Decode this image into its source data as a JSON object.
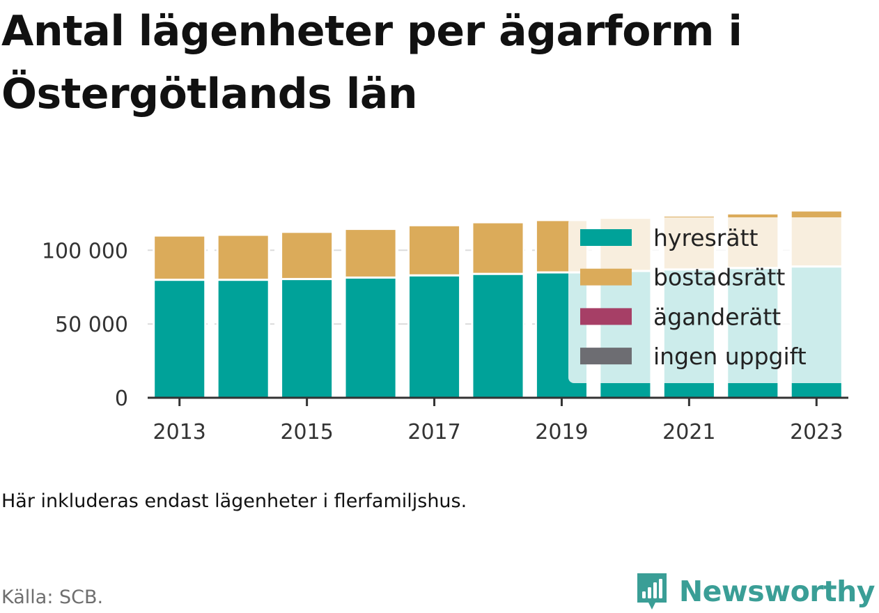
{
  "title": "Antal lägenheter per ägarform i Östergötlands län",
  "note": "Här inkluderas endast lägenheter i flerfamiljshus.",
  "source": "Källa: SCB.",
  "brand": {
    "name": "Newsworthy",
    "icon": "newsworthy-chart-logo",
    "color": "#3a9e96"
  },
  "chart_data": {
    "type": "bar",
    "stacked": true,
    "categories": [
      "2013",
      "2014",
      "2015",
      "2016",
      "2017",
      "2018",
      "2019",
      "2020",
      "2021",
      "2022",
      "2023"
    ],
    "x_tick_labels": [
      "2013",
      "2015",
      "2017",
      "2019",
      "2021",
      "2023"
    ],
    "y_ticks": [
      0,
      50000,
      100000
    ],
    "y_tick_labels": [
      "0",
      "50 000",
      "100 000"
    ],
    "ylim": [
      0,
      128000
    ],
    "grid": true,
    "legend_position": "top-right",
    "series": [
      {
        "name": "hyresrätt",
        "color": "#00a299",
        "values": [
          80000,
          80000,
          80500,
          81500,
          83000,
          84000,
          85000,
          86000,
          87000,
          88000,
          89000
        ]
      },
      {
        "name": "bostadsrätt",
        "color": "#dbab5a",
        "values": [
          30000,
          30500,
          32000,
          33000,
          34000,
          35000,
          35500,
          36000,
          36500,
          37000,
          38000
        ]
      },
      {
        "name": "äganderätt",
        "color": "#a63f66",
        "values": [
          0,
          0,
          0,
          0,
          0,
          0,
          0,
          0,
          0,
          0,
          0
        ]
      },
      {
        "name": "ingen uppgift",
        "color": "#6d6d72",
        "values": [
          0,
          0,
          0,
          0,
          0,
          0,
          0,
          0,
          0,
          0,
          0
        ]
      }
    ]
  }
}
